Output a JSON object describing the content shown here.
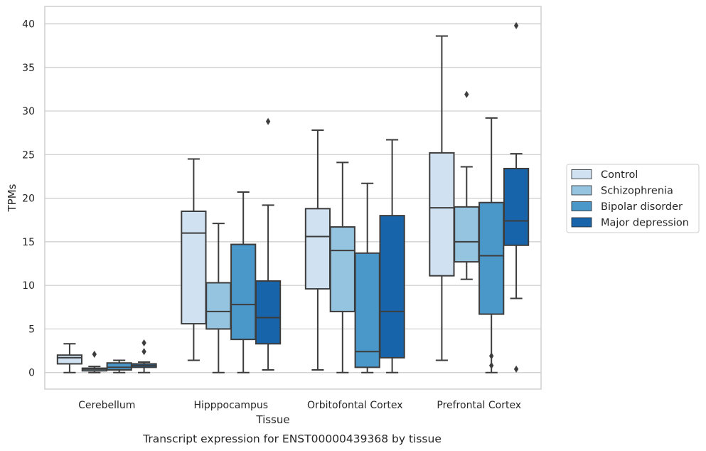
{
  "chart_data": {
    "type": "box",
    "xlabel": "Tissue",
    "ylabel": "TPMs",
    "caption": "Transcript expression for ENST00000439368 by tissue",
    "ylim": [
      -1.9,
      42
    ],
    "yticks": [
      0,
      5,
      10,
      15,
      20,
      25,
      30,
      35,
      40
    ],
    "grid": "horizontal",
    "legend_position": "right",
    "categories": [
      "Cerebellum",
      "Hipppocampus",
      "Orbitofontal Cortex",
      "Prefrontal Cortex"
    ],
    "series": [
      {
        "name": "Control",
        "color": "#d0e1f2",
        "boxes": [
          {
            "whisker_low": 0.0,
            "q1": 1.0,
            "median": 1.7,
            "q3": 2.0,
            "whisker_high": 3.3,
            "outliers": []
          },
          {
            "whisker_low": 1.4,
            "q1": 5.6,
            "median": 16.0,
            "q3": 18.5,
            "whisker_high": 24.5,
            "outliers": []
          },
          {
            "whisker_low": 0.3,
            "q1": 9.6,
            "median": 15.6,
            "q3": 18.8,
            "whisker_high": 27.8,
            "outliers": []
          },
          {
            "whisker_low": 1.4,
            "q1": 11.1,
            "median": 18.9,
            "q3": 25.2,
            "whisker_high": 38.6,
            "outliers": []
          }
        ]
      },
      {
        "name": "Schizophrenia",
        "color": "#94c4df",
        "boxes": [
          {
            "whisker_low": 0.0,
            "q1": 0.2,
            "median": 0.4,
            "q3": 0.5,
            "whisker_high": 0.7,
            "outliers": [
              2.1
            ]
          },
          {
            "whisker_low": 0.0,
            "q1": 5.0,
            "median": 7.0,
            "q3": 10.3,
            "whisker_high": 17.1,
            "outliers": []
          },
          {
            "whisker_low": 0.0,
            "q1": 7.0,
            "median": 14.0,
            "q3": 16.7,
            "whisker_high": 24.1,
            "outliers": []
          },
          {
            "whisker_low": 10.7,
            "q1": 12.7,
            "median": 15.0,
            "q3": 19.0,
            "whisker_high": 23.6,
            "outliers": [
              31.9
            ]
          }
        ]
      },
      {
        "name": "Bipolar disorder",
        "color": "#4a98c9",
        "boxes": [
          {
            "whisker_low": 0.0,
            "q1": 0.3,
            "median": 0.6,
            "q3": 1.1,
            "whisker_high": 1.4,
            "outliers": []
          },
          {
            "whisker_low": 0.0,
            "q1": 3.8,
            "median": 7.8,
            "q3": 14.7,
            "whisker_high": 20.7,
            "outliers": []
          },
          {
            "whisker_low": 0.0,
            "q1": 0.6,
            "median": 2.4,
            "q3": 13.7,
            "whisker_high": 21.7,
            "outliers": []
          },
          {
            "whisker_low": 0.0,
            "q1": 6.7,
            "median": 13.4,
            "q3": 19.5,
            "whisker_high": 29.2,
            "outliers": [
              1.9,
              0.8
            ]
          }
        ]
      },
      {
        "name": "Major depression",
        "color": "#1764ab",
        "boxes": [
          {
            "whisker_low": 0.0,
            "q1": 0.6,
            "median": 0.8,
            "q3": 1.0,
            "whisker_high": 1.2,
            "outliers": [
              3.4,
              2.4
            ]
          },
          {
            "whisker_low": 0.3,
            "q1": 3.3,
            "median": 6.3,
            "q3": 10.5,
            "whisker_high": 19.2,
            "outliers": [
              28.8
            ]
          },
          {
            "whisker_low": 0.0,
            "q1": 1.7,
            "median": 7.0,
            "q3": 18.0,
            "whisker_high": 26.7,
            "outliers": []
          },
          {
            "whisker_low": 8.5,
            "q1": 14.6,
            "median": 17.4,
            "q3": 23.4,
            "whisker_high": 25.1,
            "outliers": [
              39.8,
              0.4
            ]
          }
        ]
      }
    ]
  }
}
